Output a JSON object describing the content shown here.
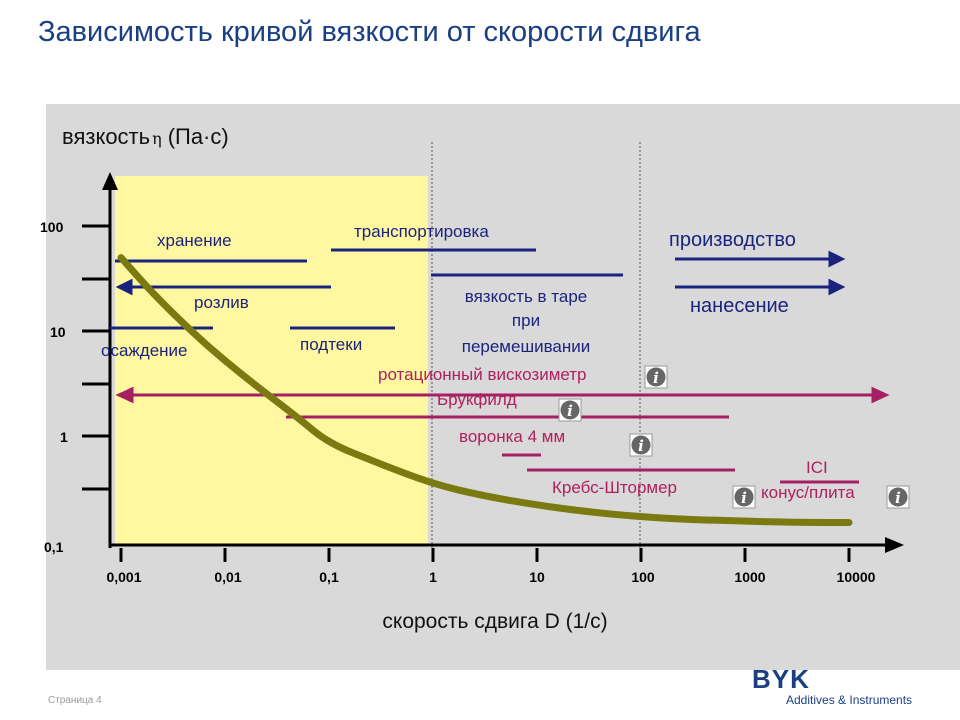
{
  "title": "Зависимость кривой вязкости от скорости сдвига",
  "footer": "Страница 4",
  "logo": {
    "brand": "BYK",
    "subtitle": "Additives & Instruments"
  },
  "colors": {
    "title": "#1a3f82",
    "panel": "#d9d9d9",
    "highlight": "#fff8a0",
    "curve": "#7a7a10",
    "blue_line": "#1a237e",
    "magenta_line": "#a51f62",
    "magenta_text": "#b0205e"
  },
  "chart_data": {
    "type": "line",
    "title": "",
    "xlabel": "скорость сдвига D (1/с)",
    "ylabel": "вязкость",
    "ylabel_symbol": "η",
    "ylabel_unit": "(Па·с)",
    "x_scale": "log",
    "y_scale": "log",
    "xlim": [
      0.001,
      10000
    ],
    "ylim": [
      0.1,
      100
    ],
    "x_ticks": [
      "0,001",
      "0,01",
      "0,1",
      "1",
      "10",
      "100",
      "1000",
      "10000"
    ],
    "y_ticks": [
      "100",
      "10",
      "1",
      "0,1"
    ],
    "highlight_region": {
      "x_from": 0.001,
      "x_to": 1
    },
    "vertical_dashed_lines": [
      1,
      100
    ],
    "series": [
      {
        "x": [
          0.001,
          0.002,
          0.005,
          0.01,
          0.02,
          0.05,
          0.1,
          0.3,
          1,
          3,
          10,
          30,
          100,
          300,
          1000,
          3000,
          10000,
          30000
        ],
        "y": [
          50,
          23,
          9.5,
          5.2,
          3.0,
          1.5,
          0.85,
          0.55,
          0.35,
          0.27,
          0.22,
          0.19,
          0.17,
          0.16,
          0.155,
          0.15,
          0.15,
          0.15
        ]
      }
    ],
    "ranges": [
      {
        "label": "хранение",
        "x_from": 0.001,
        "x_to": 0.08,
        "y": 40,
        "color": "blue"
      },
      {
        "label": "розлив",
        "x_from": 0.001,
        "x_to": 0.1,
        "y": 18,
        "color": "blue",
        "arrow": "left"
      },
      {
        "label": "осаждение",
        "x_from": 0.001,
        "x_to": 0.01,
        "y": 10,
        "color": "blue"
      },
      {
        "label": "подтеки",
        "x_from": 0.06,
        "x_to": 0.6,
        "y": 10,
        "color": "blue"
      },
      {
        "label": "транспортировка",
        "x_from": 0.01,
        "x_to": 10,
        "y": 75,
        "color": "blue"
      },
      {
        "label": "вязкость в таре при перемешивании",
        "x_from": 1,
        "x_to": 65,
        "y": 55,
        "color": "blue"
      },
      {
        "label": "производство",
        "x_from": 100,
        "x_to": 6000,
        "y": 40,
        "color": "blue",
        "arrow": "right"
      },
      {
        "label": "нанесение",
        "x_from": 100,
        "x_to": 6000,
        "y": 20,
        "color": "blue",
        "arrow": "right"
      },
      {
        "label": "ротационный вискозиметр",
        "x_from": 0.001,
        "x_to": 20000,
        "y": 3.5,
        "color": "magenta",
        "arrow": "both"
      },
      {
        "label": "Брукфилд",
        "x_from": 0.03,
        "x_to": 1000,
        "y": 1.9,
        "color": "magenta"
      },
      {
        "label": "воронка 4 мм",
        "x_from": 8,
        "x_to": 10,
        "y": 0.75,
        "color": "magenta"
      },
      {
        "label": "Кребс-Штормер",
        "x_from": 10,
        "x_to": 1000,
        "y": 0.55,
        "color": "magenta"
      },
      {
        "label": "ICI",
        "x_from": 1000,
        "x_to": 8000,
        "y": 0.55,
        "color": "magenta"
      },
      {
        "label": "конус/плита",
        "x_from": 1000,
        "x_to": 8000,
        "y": 0.55,
        "color": "magenta"
      }
    ],
    "info_icons": [
      {
        "name": "info-icon-rotational"
      },
      {
        "name": "info-icon-brookfield"
      },
      {
        "name": "info-icon-funnel"
      },
      {
        "name": "info-icon-krebs"
      },
      {
        "name": "info-icon-cone-plate"
      }
    ]
  }
}
